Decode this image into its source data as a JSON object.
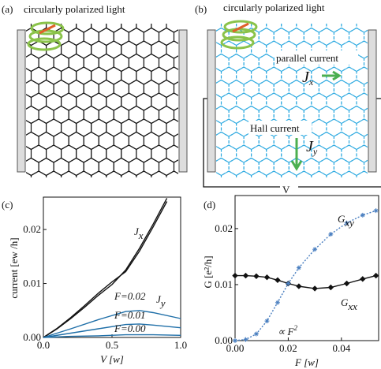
{
  "diagrams": [
    {
      "label": "(a)",
      "caption": "circularly polarized light"
    },
    {
      "label": "(b)",
      "caption": "circularly polarized light",
      "parallel": "parallel current",
      "hall": "Hall current",
      "jx": {
        "text": "J",
        "sub": "x"
      },
      "jy": {
        "text": "J",
        "sub": "y"
      },
      "voltage": "V"
    }
  ],
  "chart_data": [
    {
      "type": "line",
      "panel_label": "(c)",
      "xlabel": "V  [w]",
      "ylabel": "current  [ew /h]",
      "xlim": [
        0,
        1.0
      ],
      "ylim": [
        0,
        0.026
      ],
      "xticks": [
        {
          "value": 0,
          "label": "0.0"
        },
        0.5,
        {
          "value": 1,
          "label": "1.0"
        }
      ],
      "yticks": [
        {
          "value": 0,
          "label": "0.00"
        },
        0.01,
        0.02
      ],
      "series": [
        {
          "color": "#111111",
          "x": [
            0,
            0.1,
            0.2,
            0.3,
            0.4,
            0.5,
            0.6,
            0.7,
            0.8,
            0.9
          ],
          "values": [
            0,
            0.0016,
            0.0035,
            0.0056,
            0.0078,
            0.0098,
            0.0125,
            0.0165,
            0.021,
            0.0258
          ]
        },
        {
          "color": "#111111",
          "x": [
            0,
            0.1,
            0.2,
            0.3,
            0.4,
            0.5,
            0.6,
            0.7,
            0.8,
            0.9
          ],
          "values": [
            0,
            0.0017,
            0.0037,
            0.0059,
            0.0082,
            0.0103,
            0.0122,
            0.016,
            0.0205,
            0.0252
          ]
        },
        {
          "color": "#1f6fa8",
          "x": [
            0,
            0.2,
            0.4,
            0.6,
            0.7,
            0.8,
            1.0
          ],
          "values": [
            0,
            0.0016,
            0.0033,
            0.0048,
            0.005,
            0.0046,
            0.0035
          ]
        },
        {
          "color": "#1f6fa8",
          "x": [
            0,
            0.2,
            0.4,
            0.6,
            0.7,
            0.8,
            1.0
          ],
          "values": [
            0,
            0.0008,
            0.0016,
            0.0024,
            0.0025,
            0.0023,
            0.0018
          ]
        },
        {
          "color": "#1f6fa8",
          "x": [
            0,
            0.2,
            0.4,
            0.6,
            0.7,
            0.8,
            1.0
          ],
          "values": [
            0,
            0.0002,
            0.0003,
            0.0005,
            0.0005,
            0.0005,
            0.0004
          ]
        }
      ],
      "annotations": [
        {
          "text": "J",
          "sub": "x"
        },
        {
          "text": "J",
          "sub": "y"
        },
        {
          "text": "F=0.02"
        },
        {
          "text": "F=0.01"
        },
        {
          "text": "F=0.00"
        }
      ]
    },
    {
      "type": "line",
      "panel_label": "(d)",
      "xlabel": "F  [w]",
      "ylabel": "G  [e²/h]",
      "xlim": [
        0,
        0.054
      ],
      "ylim": [
        0,
        0.0259
      ],
      "xticks": [
        {
          "value": 0,
          "label": "0.00"
        },
        0.02,
        0.04
      ],
      "yticks": [
        {
          "value": 0,
          "label": "0.00"
        },
        0.01,
        0.02
      ],
      "series": [
        {
          "color": "#111111",
          "marker": "diamond",
          "dash": false,
          "x": [
            0,
            0.004,
            0.008,
            0.012,
            0.016,
            0.02,
            0.024,
            0.03,
            0.036,
            0.042,
            0.048,
            0.053
          ],
          "values": [
            0.0116,
            0.0116,
            0.0115,
            0.0113,
            0.0108,
            0.0102,
            0.0097,
            0.0093,
            0.0095,
            0.0102,
            0.011,
            0.0116
          ]
        },
        {
          "color": "#4a7fc0",
          "marker": "star",
          "dash": true,
          "x": [
            0,
            0.004,
            0.008,
            0.012,
            0.016,
            0.02,
            0.024,
            0.03,
            0.036,
            0.042,
            0.048,
            0.053
          ],
          "values": [
            0,
            0.0002,
            0.0012,
            0.0035,
            0.0068,
            0.0102,
            0.013,
            0.0163,
            0.019,
            0.021,
            0.0224,
            0.0232
          ]
        }
      ],
      "annotations": [
        {
          "text": "G",
          "sub": "xy"
        },
        {
          "text": "G",
          "sub": "xx"
        },
        {
          "text": "∝ F",
          "sup": "2"
        }
      ]
    }
  ]
}
